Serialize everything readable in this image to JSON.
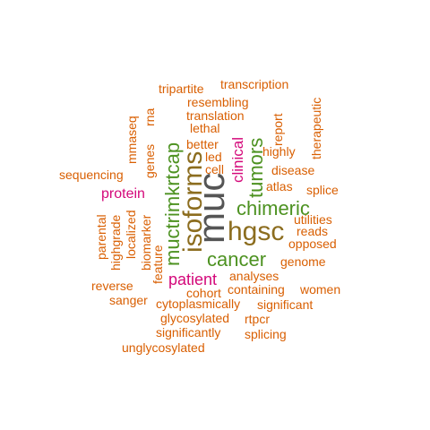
{
  "word_cloud": {
    "palette": {
      "orange": "#d95f02",
      "green": "#4d9221",
      "magenta": "#d4087a",
      "olive": "#8c6d1f",
      "dark": "#555555"
    },
    "words": [
      {
        "text": "muc",
        "color": "dark"
      },
      {
        "text": "hgsc",
        "color": "olive"
      },
      {
        "text": "isoforms",
        "color": "olive"
      },
      {
        "text": "chimeric",
        "color": "green"
      },
      {
        "text": "muctrimkrtcap",
        "color": "green"
      },
      {
        "text": "cancer",
        "color": "green"
      },
      {
        "text": "tumors",
        "color": "green"
      },
      {
        "text": "patient",
        "color": "magenta"
      },
      {
        "text": "protein",
        "color": "magenta"
      },
      {
        "text": "clinical",
        "color": "magenta"
      },
      {
        "text": "transcription",
        "color": "orange"
      },
      {
        "text": "tripartite",
        "color": "orange"
      },
      {
        "text": "resembling",
        "color": "orange"
      },
      {
        "text": "translation",
        "color": "orange"
      },
      {
        "text": "lethal",
        "color": "orange"
      },
      {
        "text": "report",
        "color": "orange"
      },
      {
        "text": "therapeutic",
        "color": "orange"
      },
      {
        "text": "mmaseq",
        "color": "orange"
      },
      {
        "text": "rna",
        "color": "orange"
      },
      {
        "text": "genes",
        "color": "orange"
      },
      {
        "text": "better",
        "color": "orange"
      },
      {
        "text": "led",
        "color": "orange"
      },
      {
        "text": "cell",
        "color": "orange"
      },
      {
        "text": "highly",
        "color": "orange"
      },
      {
        "text": "disease",
        "color": "orange"
      },
      {
        "text": "sequencing",
        "color": "orange"
      },
      {
        "text": "atlas",
        "color": "orange"
      },
      {
        "text": "splice",
        "color": "orange"
      },
      {
        "text": "utilities",
        "color": "orange"
      },
      {
        "text": "reads",
        "color": "orange"
      },
      {
        "text": "opposed",
        "color": "orange"
      },
      {
        "text": "parental",
        "color": "orange"
      },
      {
        "text": "highgrade",
        "color": "orange"
      },
      {
        "text": "localized",
        "color": "orange"
      },
      {
        "text": "biomarker",
        "color": "orange"
      },
      {
        "text": "feature",
        "color": "orange"
      },
      {
        "text": "genome",
        "color": "orange"
      },
      {
        "text": "analyses",
        "color": "orange"
      },
      {
        "text": "reverse",
        "color": "orange"
      },
      {
        "text": "containing",
        "color": "orange"
      },
      {
        "text": "women",
        "color": "orange"
      },
      {
        "text": "cohort",
        "color": "orange"
      },
      {
        "text": "sanger",
        "color": "orange"
      },
      {
        "text": "cytoplasmically",
        "color": "orange"
      },
      {
        "text": "significant",
        "color": "orange"
      },
      {
        "text": "glycosylated",
        "color": "orange"
      },
      {
        "text": "rtpcr",
        "color": "orange"
      },
      {
        "text": "significantly",
        "color": "orange"
      },
      {
        "text": "splicing",
        "color": "orange"
      },
      {
        "text": "unglycosylated",
        "color": "orange"
      }
    ]
  }
}
